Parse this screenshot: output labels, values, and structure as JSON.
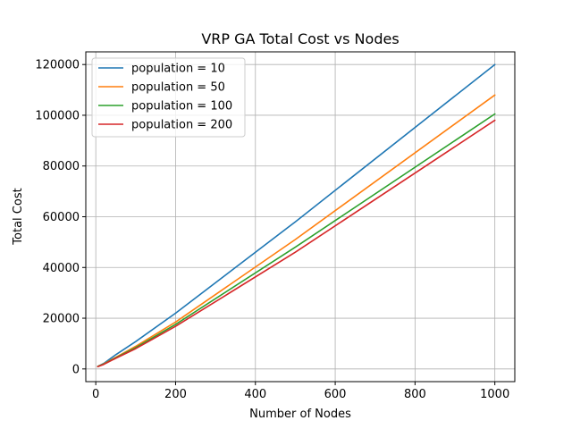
{
  "chart_data": {
    "type": "line",
    "title": "VRP GA Total Cost vs Nodes",
    "xlabel": "Number of Nodes",
    "ylabel": "Total Cost",
    "xlim": [
      -25,
      1050
    ],
    "ylim": [
      -5000,
      125000
    ],
    "xticks": [
      0,
      200,
      400,
      600,
      800,
      1000
    ],
    "yticks": [
      0,
      20000,
      40000,
      60000,
      80000,
      100000,
      120000
    ],
    "grid": true,
    "legend_position": "top-left",
    "series": [
      {
        "name": "population = 10",
        "color": "#1f77b4",
        "x": [
          5,
          20,
          50,
          100,
          200,
          500,
          1000
        ],
        "y": [
          1000,
          2200,
          5600,
          10800,
          22000,
          58000,
          120000
        ]
      },
      {
        "name": "population = 50",
        "color": "#ff7f0e",
        "x": [
          5,
          20,
          50,
          100,
          200,
          500,
          1000
        ],
        "y": [
          1000,
          2000,
          4600,
          8900,
          18500,
          51000,
          108000
        ]
      },
      {
        "name": "population = 100",
        "color": "#2ca02c",
        "x": [
          5,
          20,
          50,
          100,
          200,
          500,
          1000
        ],
        "y": [
          1000,
          1900,
          4400,
          8400,
          17600,
          48000,
          100500
        ]
      },
      {
        "name": "population = 200",
        "color": "#d62728",
        "x": [
          5,
          20,
          50,
          100,
          200,
          500,
          1000
        ],
        "y": [
          900,
          1800,
          4200,
          8000,
          16800,
          46000,
          98000
        ]
      }
    ]
  }
}
